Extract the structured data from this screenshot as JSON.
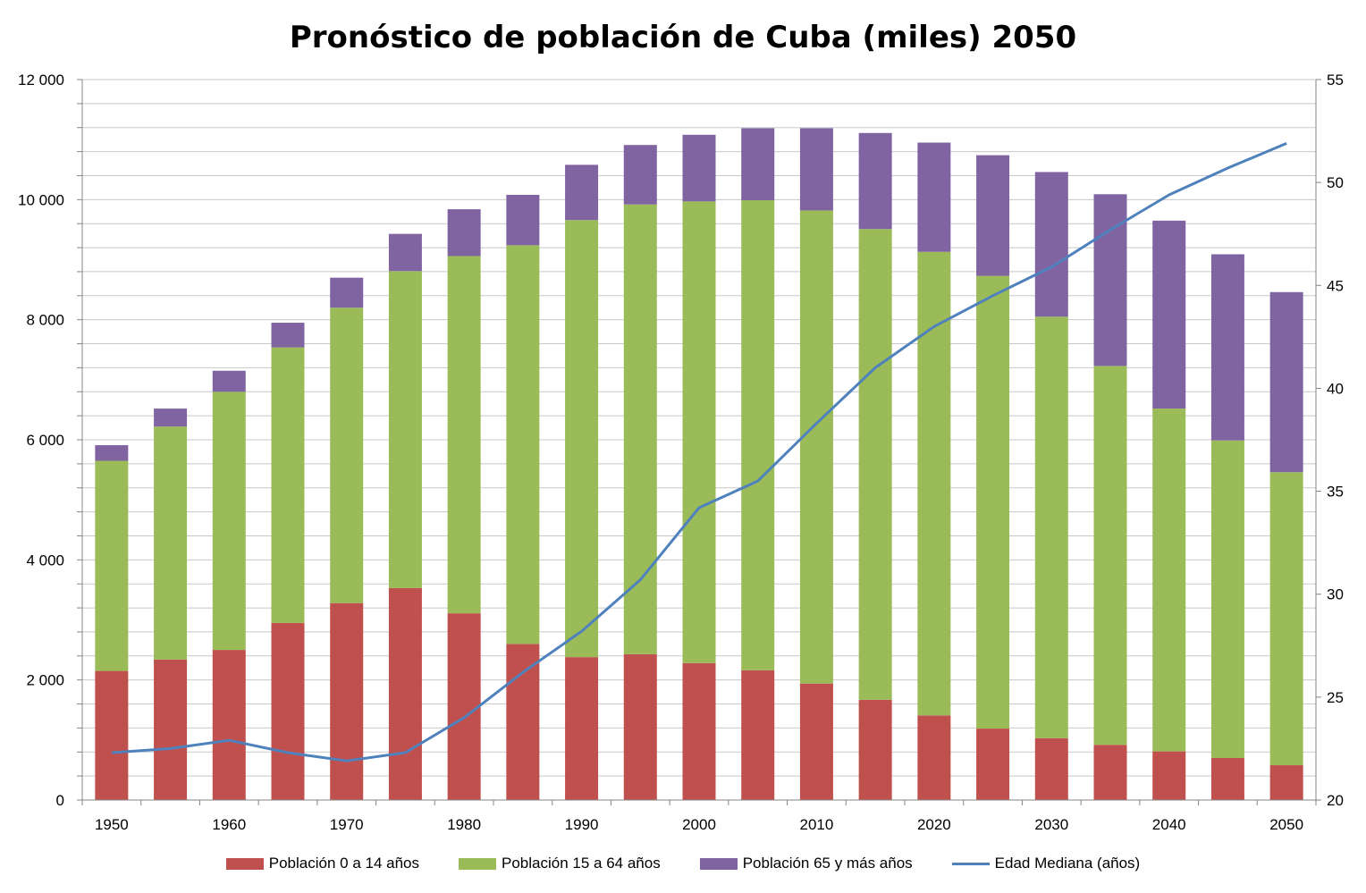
{
  "chart_data": {
    "type": "bar",
    "stacked": true,
    "title": "Pronóstico de población de Cuba (miles) 2050",
    "categories": [
      "1950",
      "1955",
      "1960",
      "1965",
      "1970",
      "1975",
      "1980",
      "1985",
      "1990",
      "1995",
      "2000",
      "2005",
      "2010",
      "2015",
      "2020",
      "2025",
      "2030",
      "2035",
      "2040",
      "2045",
      "2050"
    ],
    "x_tick_labels": [
      "1950",
      "",
      "1960",
      "",
      "1970",
      "",
      "1980",
      "",
      "1990",
      "",
      "2000",
      "",
      "2010",
      "",
      "2020",
      "",
      "2030",
      "",
      "2040",
      "",
      "2050"
    ],
    "y_left": {
      "range": [
        0,
        12000
      ],
      "ticks": [
        0,
        2000,
        4000,
        6000,
        8000,
        10000,
        12000
      ],
      "tick_labels": [
        "0",
        "2 000",
        "4 000",
        "6 000",
        "8 000",
        "10 000",
        "12 000"
      ]
    },
    "y_right": {
      "range": [
        20,
        55
      ],
      "ticks": [
        20,
        25,
        30,
        35,
        40,
        45,
        50,
        55
      ],
      "tick_labels": [
        "20",
        "25",
        "30",
        "35",
        "40",
        "45",
        "50",
        "55"
      ]
    },
    "gridlines": true,
    "series": [
      {
        "name": "Población 0 a 14 años",
        "color": "#C0504D",
        "axis": "left",
        "values": [
          2150,
          2340,
          2500,
          2950,
          3280,
          3530,
          3110,
          2600,
          2380,
          2430,
          2280,
          2160,
          1940,
          1670,
          1410,
          1190,
          1030,
          920,
          810,
          700,
          580
        ]
      },
      {
        "name": "Población 15 a 64 años",
        "color": "#9BBB59",
        "axis": "left",
        "values": [
          3500,
          3880,
          4300,
          4590,
          4920,
          5280,
          5950,
          6640,
          7280,
          7490,
          7690,
          7830,
          7880,
          7840,
          7720,
          7540,
          7020,
          6310,
          5710,
          5290,
          4880
        ]
      },
      {
        "name": "Población 65 y más años",
        "color": "#8064A2",
        "axis": "left",
        "values": [
          260,
          300,
          350,
          410,
          500,
          620,
          780,
          840,
          920,
          990,
          1110,
          1200,
          1370,
          1600,
          1820,
          2010,
          2410,
          2860,
          3130,
          3100,
          3000
        ]
      },
      {
        "name": "Edad Mediana (años)",
        "color": "#4F81BD",
        "axis": "right",
        "type": "line",
        "values": [
          22.3,
          22.5,
          22.9,
          22.3,
          21.9,
          22.3,
          24.0,
          26.2,
          28.2,
          30.7,
          34.2,
          35.5,
          38.3,
          41.0,
          43.0,
          44.5,
          45.9,
          47.7,
          49.4,
          50.7,
          51.9
        ]
      }
    ],
    "legend_position": "bottom"
  }
}
